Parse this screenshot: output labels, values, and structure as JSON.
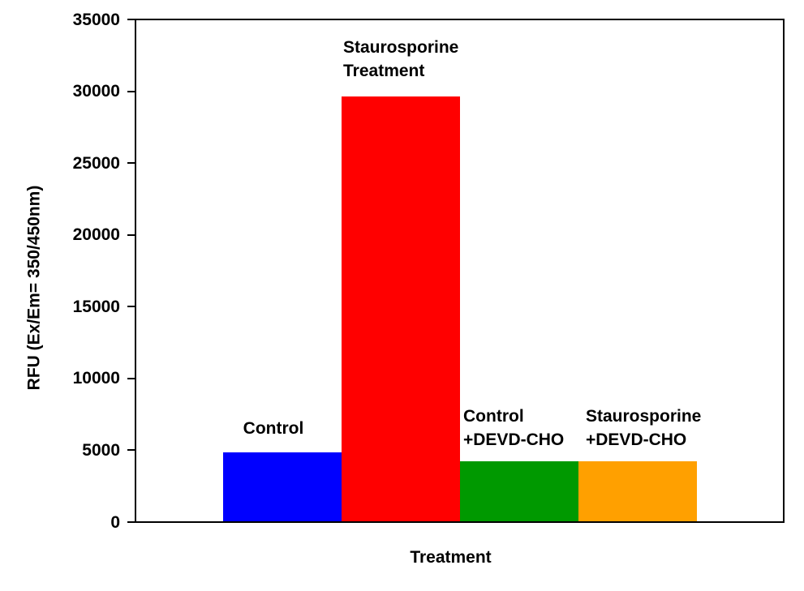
{
  "chart_data": {
    "type": "bar",
    "title": "",
    "xlabel": "Treatment",
    "ylabel": "RFU (Ex/Em= 350/450nm)",
    "ylim": [
      0,
      35000
    ],
    "yticks": [
      0,
      5000,
      10000,
      15000,
      20000,
      25000,
      30000,
      35000
    ],
    "grid": false,
    "legend_position": "none",
    "plot_border": true,
    "bar_layout": "contiguous-cluster-single-category",
    "categories": [
      "Control",
      "Staurosporine Treatment",
      "Control +DEVD-CHO",
      "Staurosporine +DEVD-CHO"
    ],
    "series": [
      {
        "name": "Control",
        "label": "Control",
        "value": 4800,
        "color": "#0000FF"
      },
      {
        "name": "Staurosporine Treatment",
        "label": "Staurosporine\nTreatment",
        "value": 29700,
        "color": "#FF0000"
      },
      {
        "name": "Control +DEVD-CHO",
        "label": "Control\n+DEVD-CHO",
        "value": 4200,
        "color": "#009900"
      },
      {
        "name": "Staurosporine +DEVD-CHO",
        "label": "Staurosporine\n+DEVD-CHO",
        "value": 4200,
        "color": "#FFA000"
      }
    ]
  }
}
